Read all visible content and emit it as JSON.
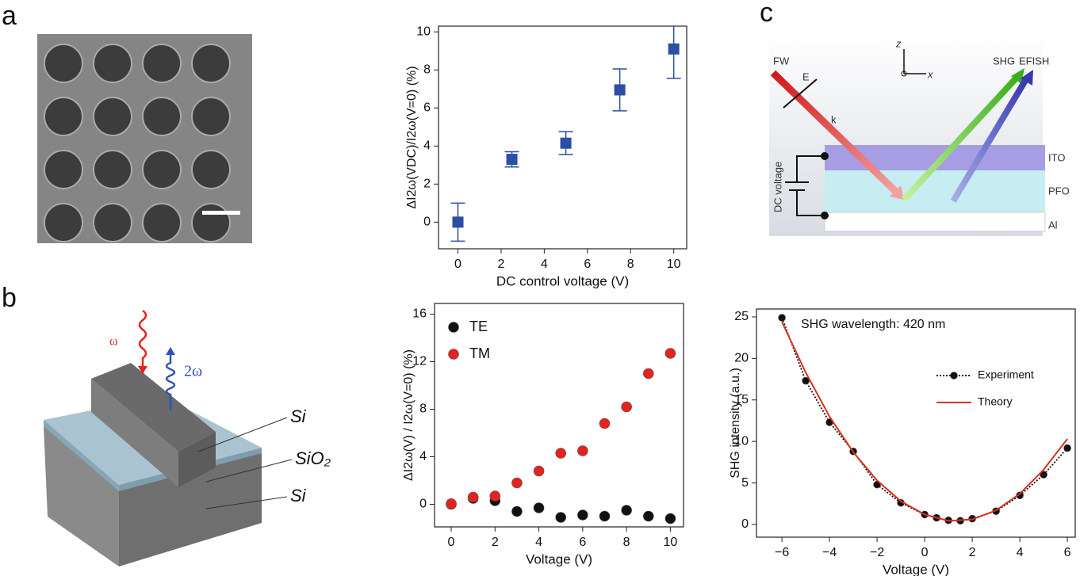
{
  "panels": {
    "labels": [
      "a",
      "b",
      "c"
    ]
  },
  "diagram_b": {
    "labels": [
      "ω",
      "2ω",
      "Si",
      "SiO₂",
      "Si"
    ]
  },
  "diagram_c": {
    "labels": [
      "FW",
      "E",
      "k",
      "SHG",
      "EFISH",
      "z",
      "x",
      "ITO",
      "PFO",
      "Al",
      "DC voltage"
    ]
  },
  "chart_data": [
    {
      "type": "scatter",
      "xlabel": "DC control voltage (V)",
      "ylabel": "ΔI2ω(VDC)/I2ω(V=0) (%)",
      "x": [
        0,
        2.5,
        5,
        7.5,
        10
      ],
      "values": [
        0,
        3.3,
        4.15,
        6.95,
        9.1
      ],
      "errors": [
        1.0,
        0.4,
        0.6,
        1.1,
        1.55
      ],
      "color": "#2c4ea3",
      "marker": "square",
      "xlim": [
        -0.9,
        10.6
      ],
      "ylim": [
        -1.4,
        10.3
      ],
      "xticks": [
        0,
        2,
        4,
        6,
        8,
        10
      ],
      "yticks": [
        0,
        2,
        4,
        6,
        8,
        10
      ]
    },
    {
      "type": "scatter",
      "xlabel": "Voltage (V)",
      "ylabel": "ΔI2ω(V) / I2ω(V=0) (%)",
      "x": [
        0,
        1,
        2,
        3,
        4,
        5,
        6,
        7,
        8,
        9,
        10
      ],
      "series": [
        {
          "name": "TE",
          "color": "#111111",
          "values": [
            0,
            0.5,
            0.3,
            -0.6,
            -0.3,
            -1.1,
            -0.9,
            -1.0,
            -0.5,
            -1.0,
            -1.2
          ]
        },
        {
          "name": "TM",
          "color": "#e3231f",
          "values": [
            0.05,
            0.6,
            0.7,
            1.8,
            2.8,
            4.3,
            4.5,
            6.8,
            8.2,
            11.0,
            12.7
          ]
        }
      ],
      "marker": "circle",
      "legend": "upper left",
      "xlim": [
        -0.76,
        10.6
      ],
      "ylim": [
        -1.9,
        16.9
      ],
      "xticks": [
        0,
        2,
        4,
        6,
        8,
        10
      ],
      "yticks": [
        0,
        4,
        8,
        12,
        16
      ]
    },
    {
      "type": "line",
      "xlabel": "Voltage (V)",
      "ylabel": "SHG intensity (a.u.)",
      "annotation": "SHG wavelength: 420 nm",
      "series": [
        {
          "name": "Experiment",
          "color": "#111111",
          "style": "dotted",
          "marker": "circle",
          "x": [
            -6,
            -5,
            -4,
            -3,
            -2,
            -1,
            0,
            0.5,
            1,
            1.5,
            2,
            3,
            4,
            5,
            6
          ],
          "values": [
            24.9,
            17.3,
            12.3,
            8.8,
            4.8,
            2.6,
            1.2,
            0.8,
            0.5,
            0.45,
            0.7,
            1.6,
            3.5,
            6.0,
            9.2
          ]
        },
        {
          "name": "Theory",
          "color": "#d8321e",
          "x": [
            -6,
            -5,
            -4,
            -3,
            -2,
            -1,
            0,
            1,
            2,
            3,
            4,
            5,
            6
          ],
          "values": [
            24.4,
            18.3,
            13.0,
            8.7,
            5.3,
            2.8,
            1.2,
            0.44,
            0.6,
            1.7,
            3.7,
            6.6,
            10.3
          ]
        }
      ],
      "legend": "center right",
      "xlim": [
        -7.07,
        6.33
      ],
      "ylim": [
        -1.53,
        25.95
      ],
      "xticks": [
        {
          "value": -6,
          "label": "−6"
        },
        {
          "value": -4,
          "label": "−4"
        },
        {
          "value": -2,
          "label": "−2"
        },
        0,
        2,
        4,
        6
      ],
      "yticks": [
        0,
        5,
        10,
        15,
        20,
        25
      ]
    }
  ]
}
